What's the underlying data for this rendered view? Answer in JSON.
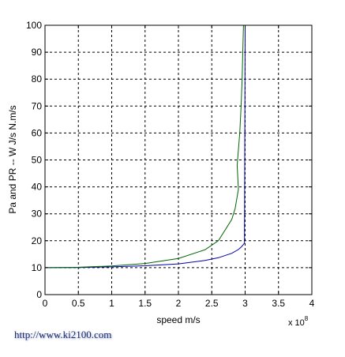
{
  "chart_data": {
    "type": "line",
    "xlabel": "speed m/s",
    "ylabel": "Pa and PR -- W  J/s  N.m/s",
    "x_exponent_label": "x 10",
    "x_exponent_power": "8",
    "xlim": [
      0,
      4
    ],
    "ylim": [
      0,
      100
    ],
    "x_scale_factor": 100000000,
    "xticks": [
      "0",
      "0.5",
      "1",
      "1.5",
      "2",
      "2.5",
      "3",
      "3.5",
      "4"
    ],
    "yticks": [
      "0",
      "10",
      "20",
      "30",
      "40",
      "50",
      "60",
      "70",
      "80",
      "90",
      "100"
    ],
    "grid": true,
    "grid_style": "dashed",
    "series": [
      {
        "color": "#0000aa",
        "x": [
          0,
          0.5,
          1.0,
          1.5,
          2.0,
          2.4,
          2.6,
          2.8,
          2.9,
          2.95,
          2.98,
          2.99
        ],
        "y": [
          10.0,
          10.07,
          10.29,
          10.7,
          11.41,
          12.7,
          13.69,
          15.33,
          16.74,
          17.88,
          18.78,
          19.14
        ]
      },
      {
        "color": "#006600",
        "x": [
          0,
          0.5,
          1.0,
          1.5,
          2.0,
          2.4,
          2.6,
          2.8,
          2.85,
          2.9
        ],
        "y": [
          10.0,
          10.14,
          10.61,
          11.55,
          13.42,
          16.67,
          20.05,
          27.92,
          31.9,
          39.1
        ]
      }
    ],
    "blue_tail_y": [
      20,
      25,
      30,
      40,
      50,
      60,
      70,
      80,
      90,
      100
    ],
    "green_tail_x": [
      2.88,
      2.92,
      2.94,
      2.955,
      2.965,
      2.975
    ],
    "green_tail_y": [
      48,
      60,
      70,
      80,
      90,
      100
    ]
  },
  "watermark": "http://www.ki2100.com"
}
